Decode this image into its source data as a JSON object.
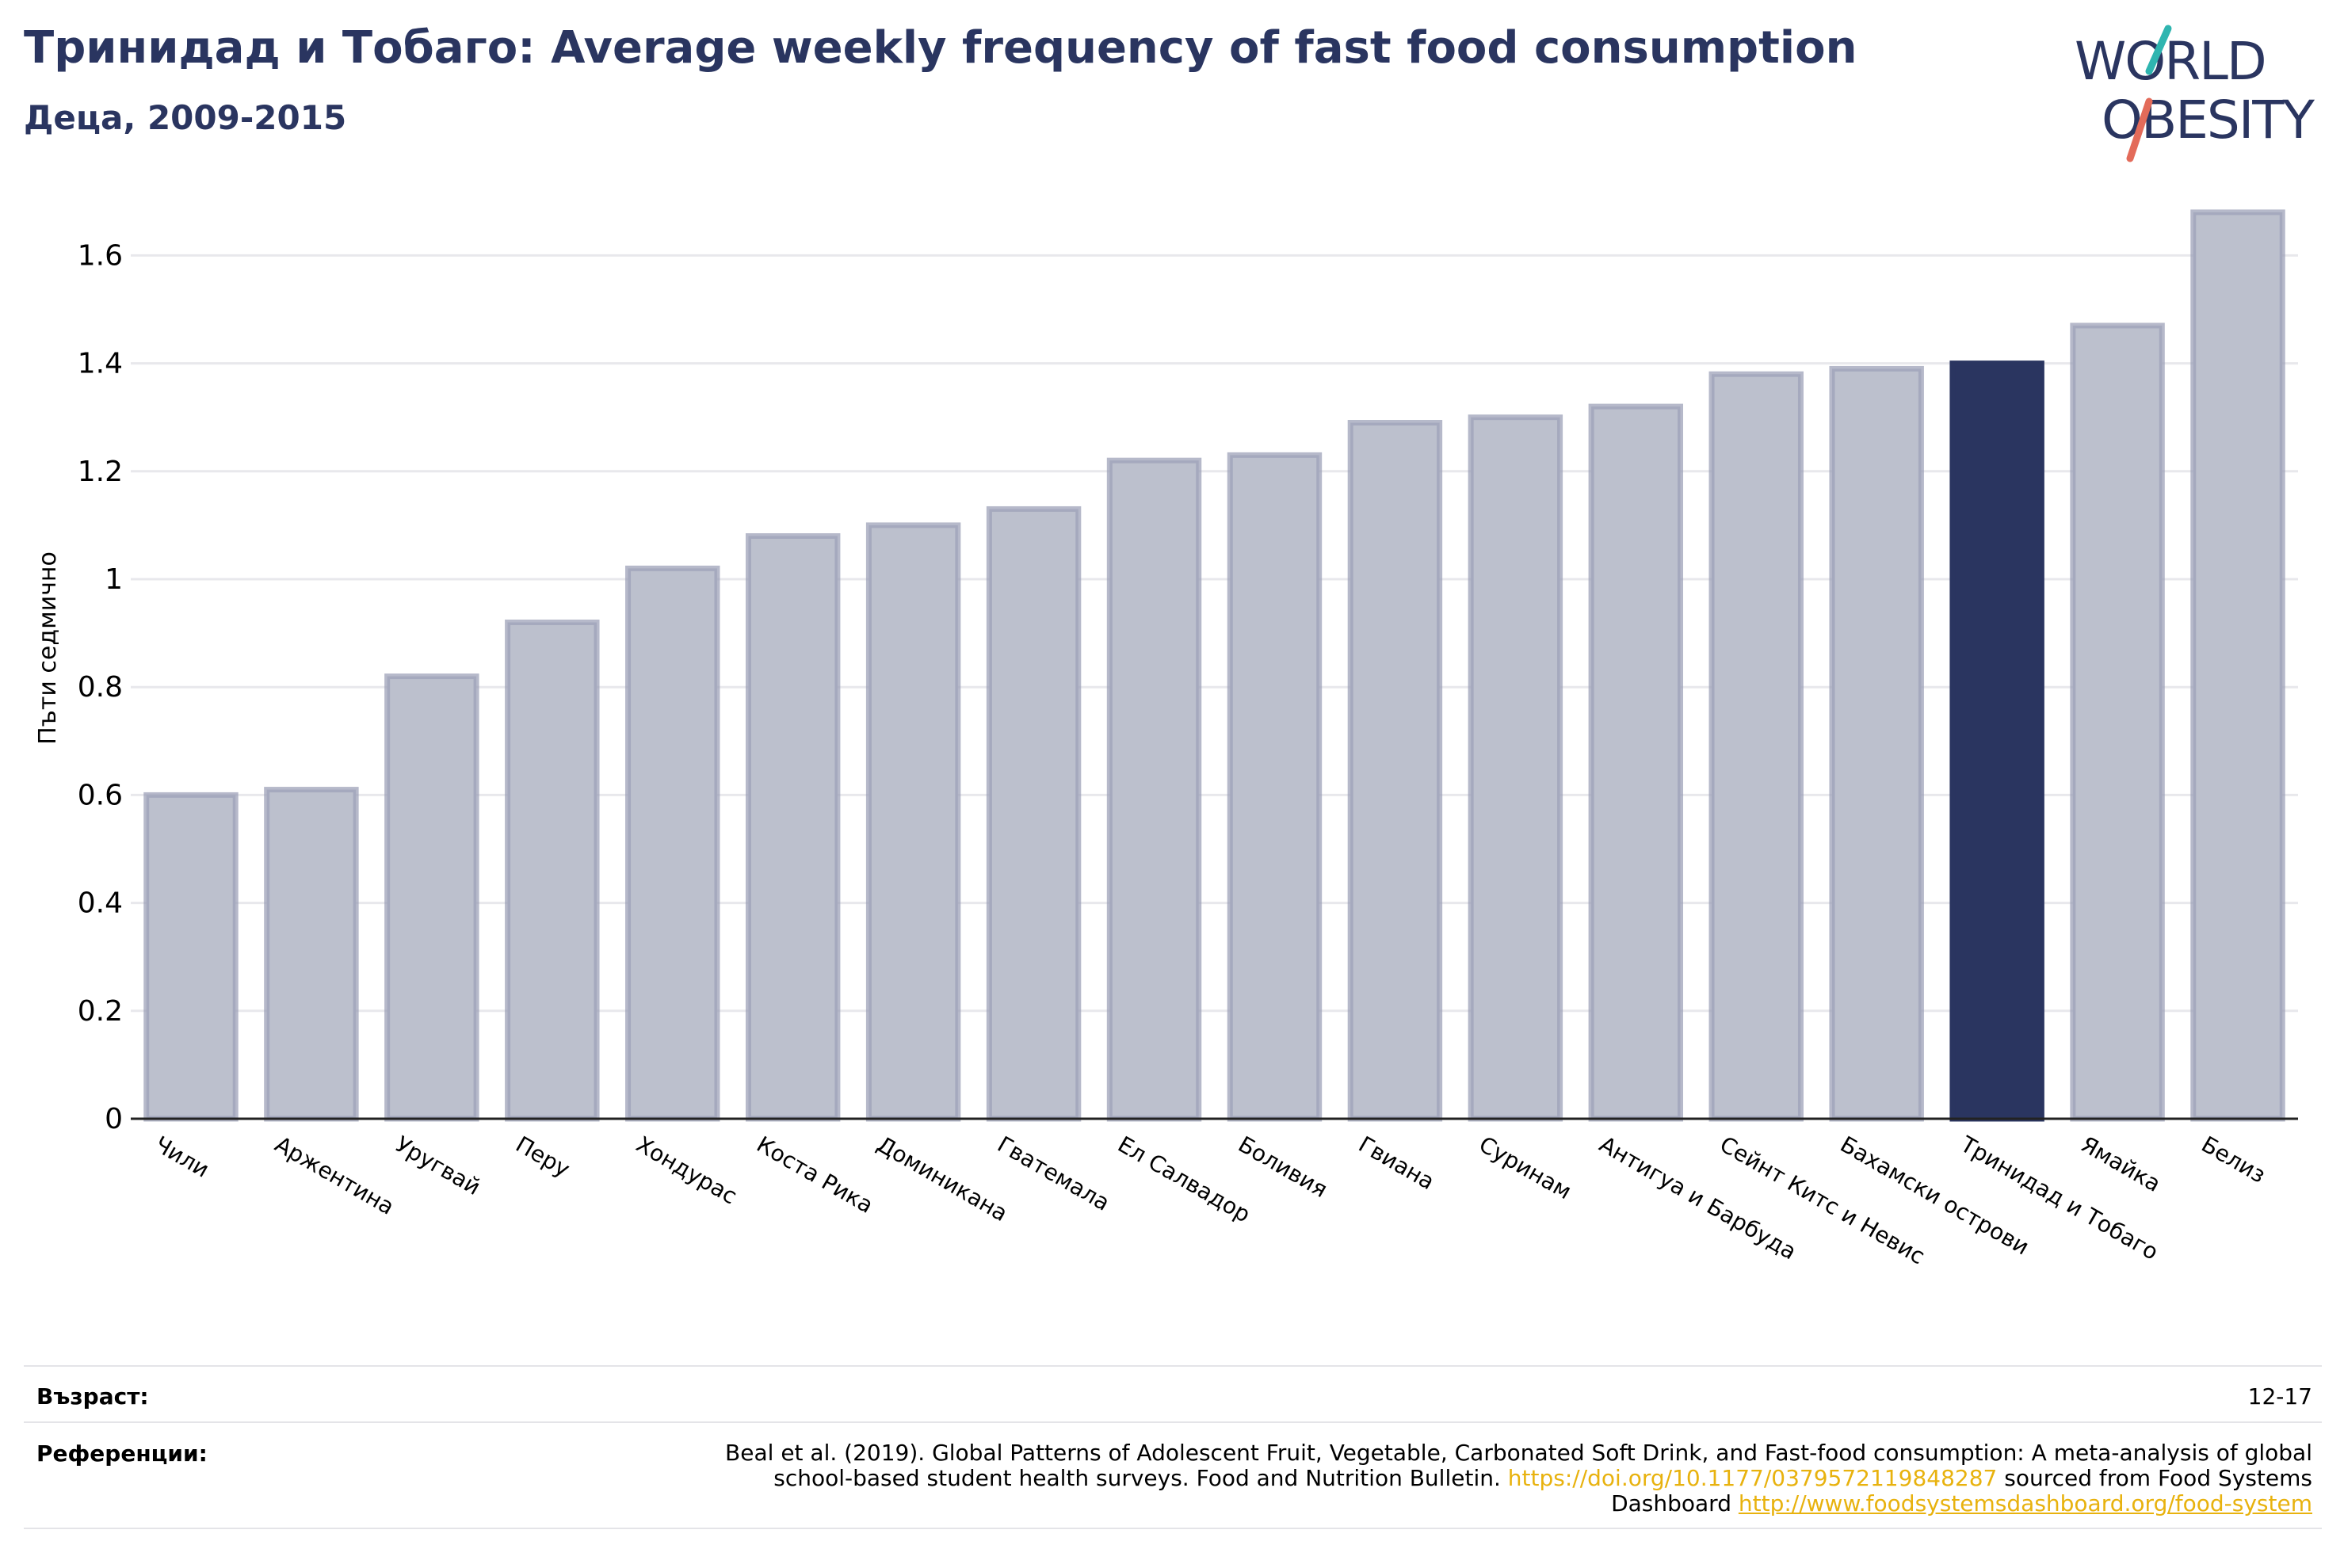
{
  "header": {
    "title": "Тринидад и Тобаго: Average weekly frequency of fast food consumption",
    "subtitle": "Деца, 2009-2015"
  },
  "logo": {
    "line1": "WORLD",
    "line2": "OBESITY"
  },
  "colors": {
    "bar": "#bcc0cd",
    "bar_stroke": "#9da2b8",
    "highlight": "#2a3560",
    "text": "#2a3560",
    "link": "#e8b20e"
  },
  "chart_data": {
    "type": "bar",
    "ylabel": "Пъти седмично",
    "ylim": [
      0,
      1.7
    ],
    "yticks": [
      0,
      0.2,
      0.4,
      0.6,
      0.8,
      1,
      1.2,
      1.4,
      1.6
    ],
    "ytick_labels": [
      "0",
      "0.2",
      "0.4",
      "0.6",
      "0.8",
      "1",
      "1.2",
      "1.4",
      "1.6"
    ],
    "grid": true,
    "categories": [
      "Чили",
      "Аржентина",
      "Уругвай",
      "Перу",
      "Хондурас",
      "Коста Рика",
      "Доминикана",
      "Гватемала",
      "Ел Салвадор",
      "Боливия",
      "Гвиана",
      "Суринам",
      "Антигуа и Барбуда",
      "Сейнт Китс и Невис",
      "Бахамски острови",
      "Тринидад и Тобаго",
      "Ямайка",
      "Белиз"
    ],
    "values": [
      0.6,
      0.61,
      0.82,
      0.92,
      1.02,
      1.08,
      1.1,
      1.13,
      1.22,
      1.23,
      1.29,
      1.3,
      1.32,
      1.38,
      1.39,
      1.4,
      1.47,
      1.68
    ],
    "highlight": "Тринидад и Тобаго"
  },
  "footer": {
    "age_label": "Възраст:",
    "age_value": "12-17",
    "references_label": "Референции:",
    "reference_text_1": "Beal et al. (2019). Global Patterns of Adolescent Fruit, Vegetable, Carbonated Soft Drink, and Fast-food consumption: A meta-analysis of global school-based student health surveys. Food and Nutrition Bulletin. ",
    "reference_link_1": "https://doi.org/10.1177/0379572119848287",
    "reference_text_2": " sourced from Food Systems Dashboard ",
    "reference_link_2": "http://www.foodsystemsdashboard.org/food-system"
  }
}
